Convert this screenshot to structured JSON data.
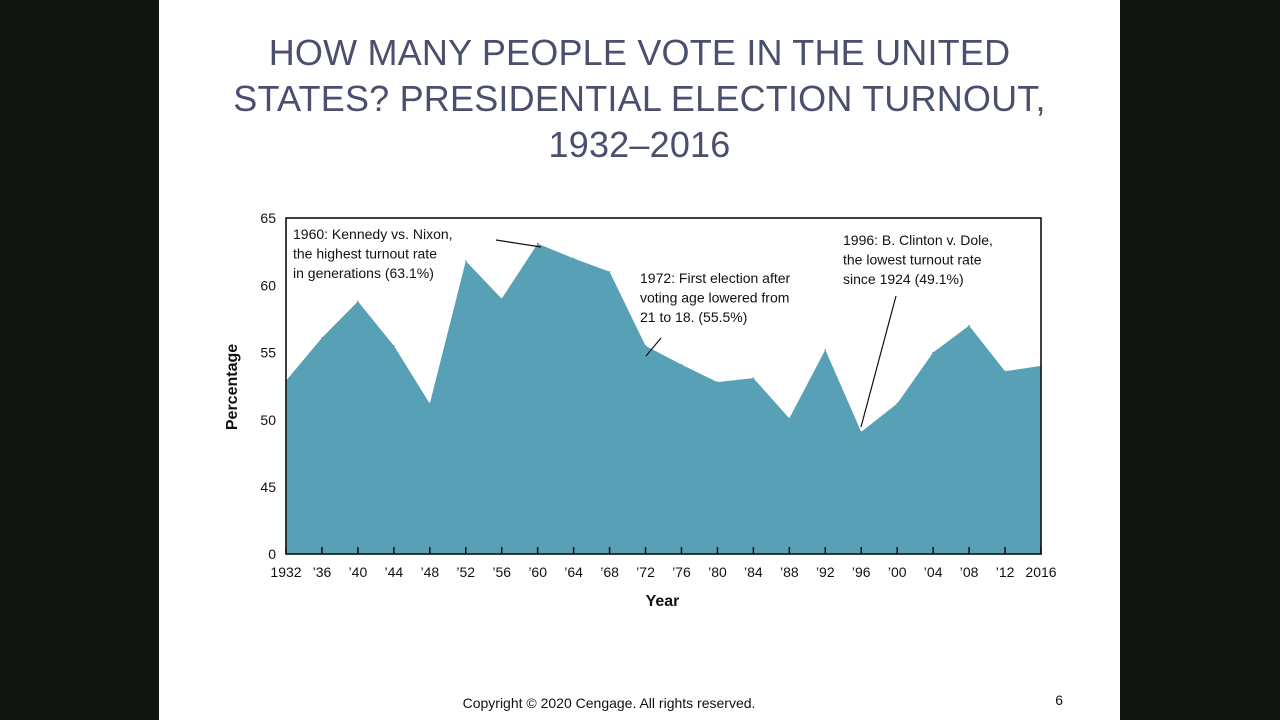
{
  "slide": {
    "title_lines": [
      "HOW MANY PEOPLE VOTE IN THE UNITED",
      "STATES? PRESIDENTIAL ELECTION TURNOUT,",
      "1932–2016"
    ],
    "copyright": "Copyright © 2020 Cengage. All rights reserved.",
    "page_number": "6"
  },
  "colors": {
    "background": "#121512",
    "slide": "#ffffff",
    "title": "#4a4f6e",
    "area_fill": "#58a0b5",
    "axis": "#111111"
  },
  "chart_data": {
    "type": "area",
    "title": "",
    "xlabel": "Year",
    "ylabel": "Percentage",
    "x": [
      1932,
      1936,
      1940,
      1944,
      1948,
      1952,
      1956,
      1960,
      1964,
      1968,
      1972,
      1976,
      1980,
      1984,
      1988,
      1992,
      1996,
      2000,
      2004,
      2008,
      2012,
      2016
    ],
    "values": [
      52.9,
      56.1,
      58.8,
      55.5,
      51.2,
      61.8,
      59.0,
      63.1,
      62.0,
      61.0,
      55.5,
      54.1,
      52.8,
      53.1,
      50.1,
      55.2,
      49.1,
      51.2,
      55.0,
      57.0,
      53.6,
      54.0
    ],
    "x_tick_labels": [
      "1932",
      "’36",
      "’40",
      "’44",
      "’48",
      "’52",
      "’56",
      "’60",
      "’64",
      "’68",
      "’72",
      "’76",
      "’80",
      "’84",
      "’88",
      "’92",
      "’96",
      "’00",
      "’04",
      "’08",
      "’12",
      "2016"
    ],
    "y_ticks": [
      0,
      45,
      50,
      55,
      60,
      65
    ],
    "y_axis_break": "0 at baseline, then 45 to 65",
    "ylim": [
      0,
      65
    ],
    "grid": false,
    "annotations": [
      {
        "x": 1960,
        "y": 63.1,
        "lines": [
          "1960: Kennedy vs. Nixon,",
          "the highest turnout rate",
          "in generations (63.1%)"
        ]
      },
      {
        "x": 1972,
        "y": 55.5,
        "lines": [
          "1972: First election after",
          "voting age lowered from",
          "21 to 18. (55.5%)"
        ]
      },
      {
        "x": 1996,
        "y": 49.1,
        "lines": [
          "1996: B. Clinton v. Dole,",
          "the lowest turnout rate",
          "since 1924 (49.1%)"
        ]
      }
    ]
  }
}
